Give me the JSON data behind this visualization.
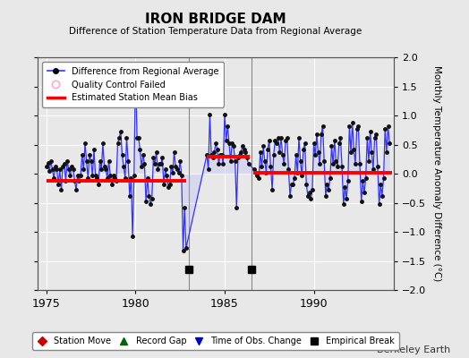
{
  "title": "IRON BRIDGE DAM",
  "subtitle": "Difference of Station Temperature Data from Regional Average",
  "ylabel": "Monthly Temperature Anomaly Difference (°C)",
  "xlim": [
    1974.5,
    1994.5
  ],
  "ylim": [
    -2,
    2
  ],
  "yticks": [
    -2,
    -1.5,
    -1,
    -0.5,
    0,
    0.5,
    1,
    1.5,
    2
  ],
  "xticks": [
    1975,
    1980,
    1985,
    1990
  ],
  "background_color": "#e8e8e8",
  "grid_color": "#d0d0d0",
  "line_color": "#3333ff",
  "line_fill_color": "#aaaaff",
  "bias_color": "#ff0000",
  "watermark": "Berkeley Earth",
  "segments": [
    {
      "x_start": 1975.0,
      "x_end": 1982.83,
      "bias": -0.13
    },
    {
      "x_start": 1984.0,
      "x_end": 1986.4,
      "bias": 0.3
    },
    {
      "x_start": 1986.6,
      "x_end": 1994.4,
      "bias": 0.02
    }
  ],
  "empirical_breaks": [
    1983.0,
    1986.5
  ],
  "data_x": [
    1975.0,
    1975.083,
    1975.167,
    1975.25,
    1975.333,
    1975.417,
    1975.5,
    1975.583,
    1975.667,
    1975.75,
    1975.833,
    1975.917,
    1976.0,
    1976.083,
    1976.167,
    1976.25,
    1976.333,
    1976.417,
    1976.5,
    1976.583,
    1976.667,
    1976.75,
    1976.833,
    1976.917,
    1977.0,
    1977.083,
    1977.167,
    1977.25,
    1977.333,
    1977.417,
    1977.5,
    1977.583,
    1977.667,
    1977.75,
    1977.833,
    1977.917,
    1978.0,
    1978.083,
    1978.167,
    1978.25,
    1978.333,
    1978.417,
    1978.5,
    1978.583,
    1978.667,
    1978.75,
    1978.833,
    1978.917,
    1979.0,
    1979.083,
    1979.167,
    1979.25,
    1979.333,
    1979.417,
    1979.5,
    1979.583,
    1979.667,
    1979.75,
    1979.833,
    1979.917,
    1980.0,
    1980.083,
    1980.167,
    1980.25,
    1980.333,
    1980.417,
    1980.5,
    1980.583,
    1980.667,
    1980.75,
    1980.833,
    1980.917,
    1981.0,
    1981.083,
    1981.167,
    1981.25,
    1981.333,
    1981.417,
    1981.5,
    1981.583,
    1981.667,
    1981.75,
    1981.833,
    1981.917,
    1982.0,
    1982.083,
    1982.167,
    1982.25,
    1982.333,
    1982.417,
    1982.5,
    1982.583,
    1982.667,
    1982.75,
    1982.833,
    1984.0,
    1984.083,
    1984.167,
    1984.25,
    1984.333,
    1984.417,
    1984.5,
    1984.583,
    1984.667,
    1984.75,
    1984.833,
    1984.917,
    1985.0,
    1985.083,
    1985.167,
    1985.25,
    1985.333,
    1985.417,
    1985.5,
    1985.583,
    1985.667,
    1985.75,
    1985.833,
    1985.917,
    1986.0,
    1986.083,
    1986.167,
    1986.25,
    1986.333,
    1986.667,
    1986.75,
    1986.833,
    1986.917,
    1987.0,
    1987.083,
    1987.167,
    1987.25,
    1987.333,
    1987.417,
    1987.5,
    1987.583,
    1987.667,
    1987.75,
    1987.833,
    1987.917,
    1988.0,
    1988.083,
    1988.167,
    1988.25,
    1988.333,
    1988.417,
    1988.5,
    1988.583,
    1988.667,
    1988.75,
    1988.833,
    1988.917,
    1989.0,
    1989.083,
    1989.167,
    1989.25,
    1989.333,
    1989.417,
    1989.5,
    1989.583,
    1989.667,
    1989.75,
    1989.833,
    1989.917,
    1990.0,
    1990.083,
    1990.167,
    1990.25,
    1990.333,
    1990.417,
    1990.5,
    1990.583,
    1990.667,
    1990.75,
    1990.833,
    1990.917,
    1991.0,
    1991.083,
    1991.167,
    1991.25,
    1991.333,
    1991.417,
    1991.5,
    1991.583,
    1991.667,
    1991.75,
    1991.833,
    1991.917,
    1992.0,
    1992.083,
    1992.167,
    1992.25,
    1992.333,
    1992.417,
    1992.5,
    1992.583,
    1992.667,
    1992.75,
    1992.833,
    1992.917,
    1993.0,
    1993.083,
    1993.167,
    1993.25,
    1993.333,
    1993.417,
    1993.5,
    1993.583,
    1993.667,
    1993.75,
    1993.833,
    1993.917,
    1994.0,
    1994.083,
    1994.167,
    1994.25
  ],
  "data_y": [
    0.12,
    0.18,
    0.05,
    0.22,
    0.07,
    -0.08,
    0.12,
    0.07,
    -0.18,
    0.07,
    -0.28,
    0.12,
    0.17,
    -0.13,
    0.22,
    0.07,
    -0.03,
    0.12,
    0.07,
    -0.13,
    -0.28,
    -0.03,
    -0.13,
    -0.03,
    0.32,
    0.07,
    0.52,
    0.22,
    -0.08,
    0.32,
    0.22,
    -0.03,
    0.42,
    -0.03,
    -0.08,
    -0.18,
    0.22,
    0.07,
    0.52,
    0.12,
    0.07,
    -0.08,
    0.22,
    -0.03,
    -0.18,
    -0.03,
    -0.08,
    -0.13,
    0.52,
    0.62,
    0.72,
    0.32,
    0.12,
    -0.08,
    0.62,
    0.22,
    -0.38,
    -0.08,
    -1.08,
    -0.03,
    1.82,
    0.62,
    0.62,
    0.42,
    0.12,
    0.32,
    0.17,
    -0.48,
    -0.08,
    -0.38,
    -0.53,
    -0.43,
    0.27,
    0.17,
    0.37,
    0.07,
    0.17,
    0.17,
    0.27,
    -0.18,
    0.07,
    -0.03,
    -0.23,
    -0.18,
    0.12,
    0.02,
    0.37,
    0.12,
    0.07,
    0.02,
    0.22,
    -0.03,
    -1.33,
    -0.58,
    -1.28,
    0.32,
    0.07,
    1.02,
    0.32,
    0.27,
    0.37,
    0.52,
    0.42,
    0.17,
    0.32,
    0.32,
    0.17,
    1.02,
    0.57,
    0.82,
    0.52,
    0.22,
    0.52,
    0.47,
    0.22,
    -0.58,
    0.27,
    0.32,
    0.37,
    0.47,
    0.42,
    0.37,
    0.27,
    0.17,
    0.07,
    0.02,
    -0.03,
    -0.08,
    0.37,
    0.12,
    0.47,
    0.22,
    0.02,
    0.42,
    0.57,
    0.12,
    -0.28,
    0.32,
    0.57,
    0.52,
    0.62,
    0.37,
    0.62,
    0.32,
    0.17,
    0.57,
    0.62,
    0.07,
    -0.38,
    -0.18,
    -0.18,
    -0.08,
    0.32,
    0.02,
    0.62,
    0.22,
    -0.03,
    0.42,
    0.52,
    -0.18,
    -0.38,
    -0.33,
    -0.43,
    -0.28,
    0.52,
    0.32,
    0.67,
    0.37,
    0.17,
    0.67,
    0.82,
    0.22,
    -0.38,
    -0.18,
    -0.28,
    -0.08,
    0.47,
    0.17,
    0.57,
    0.22,
    0.12,
    0.52,
    0.62,
    0.12,
    -0.53,
    -0.23,
    -0.43,
    -0.13,
    0.82,
    0.37,
    0.87,
    0.42,
    0.17,
    0.77,
    0.82,
    0.17,
    -0.48,
    -0.13,
    -0.33,
    -0.08,
    0.62,
    0.22,
    0.72,
    0.37,
    0.07,
    0.62,
    0.67,
    0.12,
    -0.53,
    -0.18,
    -0.38,
    -0.08,
    0.77,
    0.37,
    0.82,
    0.52
  ]
}
